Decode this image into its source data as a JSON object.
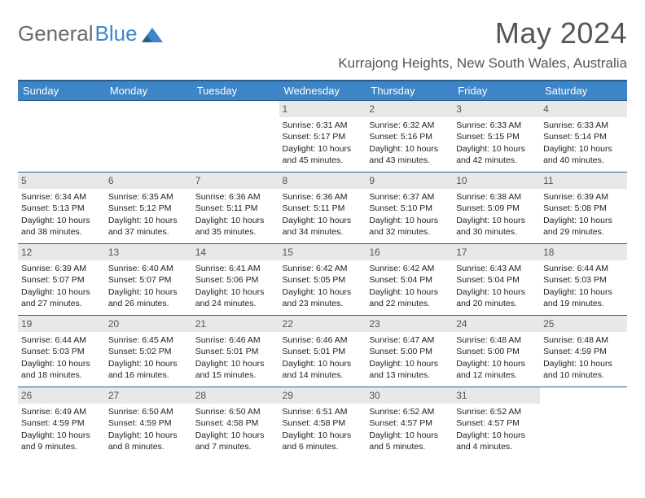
{
  "logo": {
    "part1": "General",
    "part2": "Blue"
  },
  "title": "May 2024",
  "location": "Kurrajong Heights, New South Wales, Australia",
  "colors": {
    "header_bg": "#3d85c6",
    "header_border": "#2a5d8a",
    "daynum_bg": "#e8e8e8",
    "text_muted": "#555555",
    "body_bg": "#ffffff"
  },
  "typography": {
    "title_fontsize": 36,
    "location_fontsize": 17,
    "weekday_fontsize": 13,
    "cell_fontsize": 10.5
  },
  "weekdays": [
    "Sunday",
    "Monday",
    "Tuesday",
    "Wednesday",
    "Thursday",
    "Friday",
    "Saturday"
  ],
  "weeks": [
    [
      null,
      null,
      null,
      {
        "n": "1",
        "sr": "6:31 AM",
        "ss": "5:17 PM",
        "dh": "10",
        "dm": "45"
      },
      {
        "n": "2",
        "sr": "6:32 AM",
        "ss": "5:16 PM",
        "dh": "10",
        "dm": "43"
      },
      {
        "n": "3",
        "sr": "6:33 AM",
        "ss": "5:15 PM",
        "dh": "10",
        "dm": "42"
      },
      {
        "n": "4",
        "sr": "6:33 AM",
        "ss": "5:14 PM",
        "dh": "10",
        "dm": "40"
      }
    ],
    [
      {
        "n": "5",
        "sr": "6:34 AM",
        "ss": "5:13 PM",
        "dh": "10",
        "dm": "38"
      },
      {
        "n": "6",
        "sr": "6:35 AM",
        "ss": "5:12 PM",
        "dh": "10",
        "dm": "37"
      },
      {
        "n": "7",
        "sr": "6:36 AM",
        "ss": "5:11 PM",
        "dh": "10",
        "dm": "35"
      },
      {
        "n": "8",
        "sr": "6:36 AM",
        "ss": "5:11 PM",
        "dh": "10",
        "dm": "34"
      },
      {
        "n": "9",
        "sr": "6:37 AM",
        "ss": "5:10 PM",
        "dh": "10",
        "dm": "32"
      },
      {
        "n": "10",
        "sr": "6:38 AM",
        "ss": "5:09 PM",
        "dh": "10",
        "dm": "30"
      },
      {
        "n": "11",
        "sr": "6:39 AM",
        "ss": "5:08 PM",
        "dh": "10",
        "dm": "29"
      }
    ],
    [
      {
        "n": "12",
        "sr": "6:39 AM",
        "ss": "5:07 PM",
        "dh": "10",
        "dm": "27"
      },
      {
        "n": "13",
        "sr": "6:40 AM",
        "ss": "5:07 PM",
        "dh": "10",
        "dm": "26"
      },
      {
        "n": "14",
        "sr": "6:41 AM",
        "ss": "5:06 PM",
        "dh": "10",
        "dm": "24"
      },
      {
        "n": "15",
        "sr": "6:42 AM",
        "ss": "5:05 PM",
        "dh": "10",
        "dm": "23"
      },
      {
        "n": "16",
        "sr": "6:42 AM",
        "ss": "5:04 PM",
        "dh": "10",
        "dm": "22"
      },
      {
        "n": "17",
        "sr": "6:43 AM",
        "ss": "5:04 PM",
        "dh": "10",
        "dm": "20"
      },
      {
        "n": "18",
        "sr": "6:44 AM",
        "ss": "5:03 PM",
        "dh": "10",
        "dm": "19"
      }
    ],
    [
      {
        "n": "19",
        "sr": "6:44 AM",
        "ss": "5:03 PM",
        "dh": "10",
        "dm": "18"
      },
      {
        "n": "20",
        "sr": "6:45 AM",
        "ss": "5:02 PM",
        "dh": "10",
        "dm": "16"
      },
      {
        "n": "21",
        "sr": "6:46 AM",
        "ss": "5:01 PM",
        "dh": "10",
        "dm": "15"
      },
      {
        "n": "22",
        "sr": "6:46 AM",
        "ss": "5:01 PM",
        "dh": "10",
        "dm": "14"
      },
      {
        "n": "23",
        "sr": "6:47 AM",
        "ss": "5:00 PM",
        "dh": "10",
        "dm": "13"
      },
      {
        "n": "24",
        "sr": "6:48 AM",
        "ss": "5:00 PM",
        "dh": "10",
        "dm": "12"
      },
      {
        "n": "25",
        "sr": "6:48 AM",
        "ss": "4:59 PM",
        "dh": "10",
        "dm": "10"
      }
    ],
    [
      {
        "n": "26",
        "sr": "6:49 AM",
        "ss": "4:59 PM",
        "dh": "10",
        "dm": "9"
      },
      {
        "n": "27",
        "sr": "6:50 AM",
        "ss": "4:59 PM",
        "dh": "10",
        "dm": "8"
      },
      {
        "n": "28",
        "sr": "6:50 AM",
        "ss": "4:58 PM",
        "dh": "10",
        "dm": "7"
      },
      {
        "n": "29",
        "sr": "6:51 AM",
        "ss": "4:58 PM",
        "dh": "10",
        "dm": "6"
      },
      {
        "n": "30",
        "sr": "6:52 AM",
        "ss": "4:57 PM",
        "dh": "10",
        "dm": "5"
      },
      {
        "n": "31",
        "sr": "6:52 AM",
        "ss": "4:57 PM",
        "dh": "10",
        "dm": "4"
      },
      null
    ]
  ],
  "labels": {
    "sunrise": "Sunrise:",
    "sunset": "Sunset:",
    "daylight": "Daylight:",
    "hours": "hours",
    "and": "and",
    "minutes": "minutes."
  }
}
